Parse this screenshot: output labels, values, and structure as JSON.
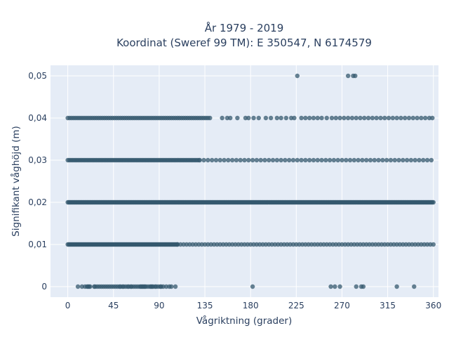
{
  "chart_data": {
    "type": "scatter",
    "title_line1": "År 1979 - 2019",
    "title_line2": "Koordinat (Sweref 99 TM): E 350547, N 6174579",
    "xlabel": "Vågriktning (grader)",
    "ylabel": "Signifikant våghöjd (m)",
    "xlim": [
      -17,
      365
    ],
    "ylim": [
      -0.0025,
      0.0525
    ],
    "x_ticks": [
      0,
      45,
      90,
      135,
      180,
      225,
      270,
      315,
      360
    ],
    "x_tick_labels": [
      "0",
      "45",
      "90",
      "135",
      "180",
      "225",
      "270",
      "315",
      "360"
    ],
    "y_ticks": [
      0,
      0.01,
      0.02,
      0.03,
      0.04,
      0.05
    ],
    "y_tick_labels": [
      "0",
      "0,01",
      "0,02",
      "0,03",
      "0,04",
      "0,05"
    ],
    "grid": true,
    "marker_color": "#34586e",
    "plot_bg": "#e5ecf6",
    "bands": [
      {
        "y": 0.01,
        "segments": [
          [
            0,
            108,
            1
          ],
          [
            108,
            360,
            3
          ]
        ],
        "extra_x": []
      },
      {
        "y": 0.02,
        "segments": [
          [
            0,
            360,
            1
          ]
        ],
        "extra_x": []
      },
      {
        "y": 0.03,
        "segments": [
          [
            0,
            130,
            1.5
          ],
          [
            130,
            360,
            4
          ]
        ],
        "extra_x": []
      },
      {
        "y": 0.04,
        "segments": [
          [
            0,
            140,
            2
          ]
        ],
        "extra_x": [
          152,
          157,
          160,
          167,
          175,
          178,
          183,
          188,
          195,
          200,
          206,
          210,
          215,
          220,
          223,
          230,
          234,
          238,
          242,
          246,
          250,
          255,
          260,
          264,
          268,
          272,
          276,
          280,
          284,
          288,
          292,
          296,
          300,
          304,
          308,
          312,
          316,
          320,
          324,
          328,
          332,
          336,
          340,
          344,
          348,
          352,
          356,
          359
        ]
      },
      {
        "y": 0.0,
        "segments": [],
        "extra_x": [
          10,
          14,
          17,
          19,
          20,
          21,
          22,
          26,
          27,
          29,
          31,
          33,
          35,
          37,
          39,
          41,
          43,
          45,
          47,
          49,
          51,
          52,
          54,
          55,
          57,
          59,
          60,
          62,
          63,
          65,
          67,
          69,
          71,
          72,
          73,
          74,
          75,
          76,
          77,
          79,
          81,
          82,
          83,
          84,
          86,
          87,
          89,
          91,
          92,
          94,
          97,
          100,
          102,
          106,
          182,
          259,
          263,
          268,
          284,
          289,
          291,
          324,
          341
        ]
      },
      {
        "y": 0.05,
        "segments": [],
        "extra_x": [
          226,
          276,
          281,
          283
        ]
      }
    ]
  }
}
